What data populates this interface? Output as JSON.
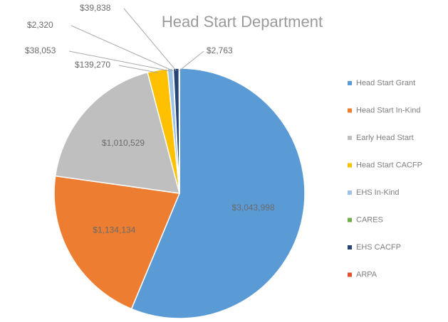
{
  "chart_data": {
    "type": "pie",
    "title": "Head Start Department",
    "categories": [
      "Head Start Grant",
      "Head Start In-Kind",
      "Early Head Start",
      "Head Start CACFP",
      "EHS In-Kind",
      "CARES",
      "EHS CACFP",
      "ARPA"
    ],
    "values": [
      3043998,
      1134134,
      1010529,
      139270,
      38053,
      2320,
      39838,
      2763
    ],
    "value_labels": [
      "$3,043,998",
      "$1,134,134",
      "$1,010,529",
      "$139,270",
      "$38,053",
      "$2,320",
      "$39,838",
      "$2,763"
    ],
    "colors": [
      "#5b9bd5",
      "#ed7d31",
      "#bfbfbf",
      "#ffc000",
      "#9dc3e6",
      "#70ad47",
      "#264478",
      "#e0502a"
    ],
    "legend": "right"
  }
}
